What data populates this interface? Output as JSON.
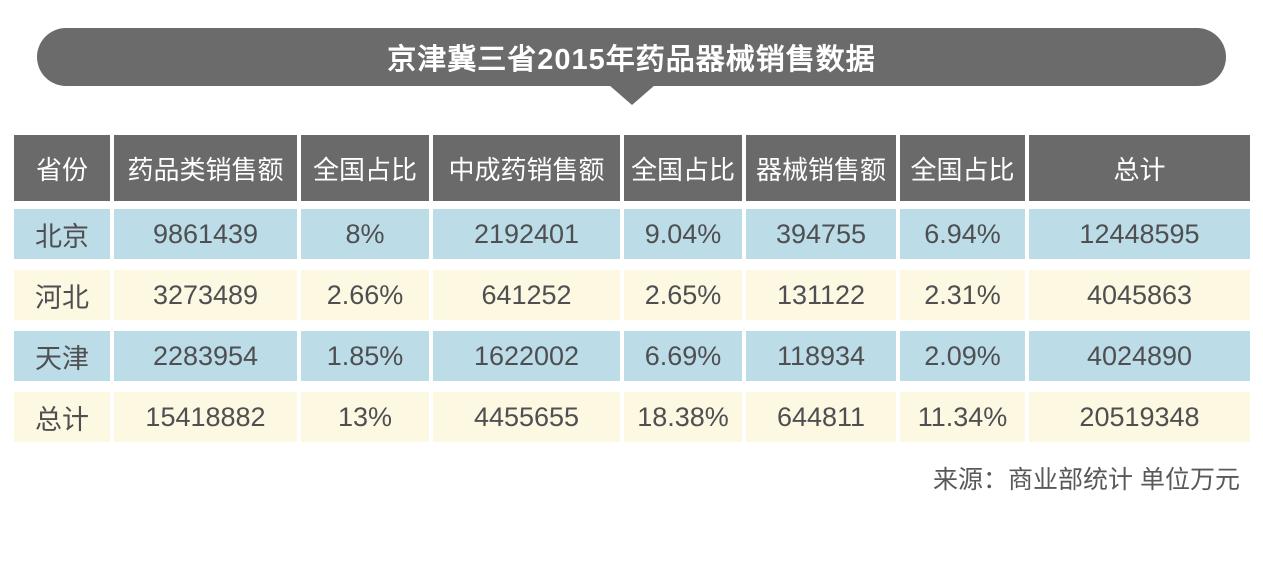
{
  "title": "京津冀三省2015年药品器械销售数据",
  "chart_data": {
    "type": "table",
    "title": "京津冀三省2015年药品器械销售数据",
    "columns": [
      "省份",
      "药品类销售额",
      "全国占比",
      "中成药销售额",
      "全国占比",
      "器械销售额",
      "全国占比",
      "总计"
    ],
    "rows": [
      [
        "北京",
        "9861439",
        "8%",
        "2192401",
        "9.04%",
        "394755",
        "6.94%",
        "12448595"
      ],
      [
        "河北",
        "3273489",
        "2.66%",
        "641252",
        "2.65%",
        "131122",
        "2.31%",
        "4045863"
      ],
      [
        "天津",
        "2283954",
        "1.85%",
        "1622002",
        "6.69%",
        "118934",
        "2.09%",
        "4024890"
      ],
      [
        "总计",
        "15418882",
        "13%",
        "4455655",
        "18.38%",
        "644811",
        "11.34%",
        "20519348"
      ]
    ],
    "source_note": "来源：商业部统计 单位万元",
    "layout": {
      "row_stripe_colors": [
        "#bcdde8",
        "#fcf8e2"
      ],
      "header_background": "#6a6a6a",
      "banner_background": "#6b6b6b",
      "cell_text_color": "#4f4f51",
      "header_text_color": "#ffffff"
    }
  },
  "footer": {
    "source": "来源：商业部统计 单位万元"
  }
}
